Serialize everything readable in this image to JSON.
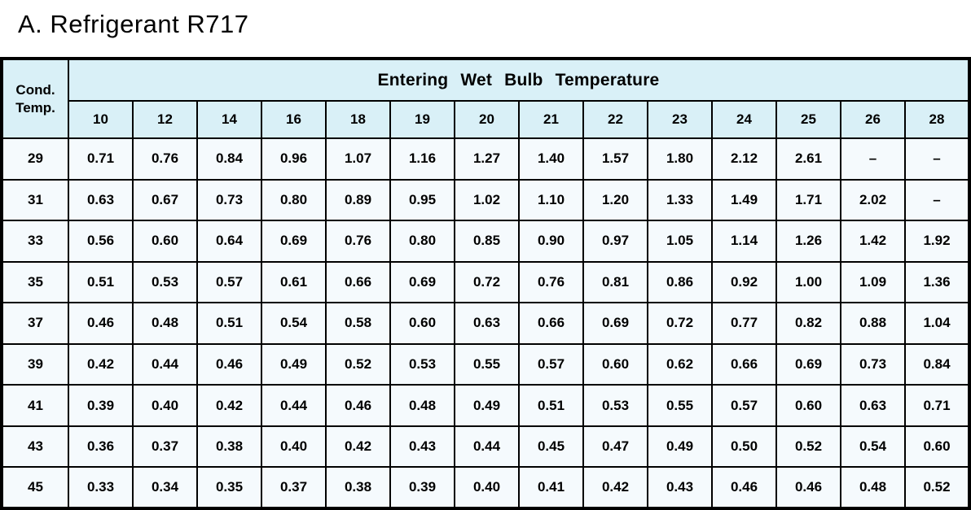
{
  "page": {
    "title": "A. Refrigerant R717"
  },
  "table": {
    "corner_header": "Cond. Temp.",
    "group_header": "Entering Wet Bulb Temperature",
    "columns": [
      "10",
      "12",
      "14",
      "16",
      "18",
      "19",
      "20",
      "21",
      "22",
      "23",
      "24",
      "25",
      "26",
      "28"
    ],
    "rows": [
      {
        "cond_temp": "29",
        "values": [
          "0.71",
          "0.76",
          "0.84",
          "0.96",
          "1.07",
          "1.16",
          "1.27",
          "1.40",
          "1.57",
          "1.80",
          "2.12",
          "2.61",
          "–",
          "–"
        ]
      },
      {
        "cond_temp": "31",
        "values": [
          "0.63",
          "0.67",
          "0.73",
          "0.80",
          "0.89",
          "0.95",
          "1.02",
          "1.10",
          "1.20",
          "1.33",
          "1.49",
          "1.71",
          "2.02",
          "–"
        ]
      },
      {
        "cond_temp": "33",
        "values": [
          "0.56",
          "0.60",
          "0.64",
          "0.69",
          "0.76",
          "0.80",
          "0.85",
          "0.90",
          "0.97",
          "1.05",
          "1.14",
          "1.26",
          "1.42",
          "1.92"
        ]
      },
      {
        "cond_temp": "35",
        "values": [
          "0.51",
          "0.53",
          "0.57",
          "0.61",
          "0.66",
          "0.69",
          "0.72",
          "0.76",
          "0.81",
          "0.86",
          "0.92",
          "1.00",
          "1.09",
          "1.36"
        ]
      },
      {
        "cond_temp": "37",
        "values": [
          "0.46",
          "0.48",
          "0.51",
          "0.54",
          "0.58",
          "0.60",
          "0.63",
          "0.66",
          "0.69",
          "0.72",
          "0.77",
          "0.82",
          "0.88",
          "1.04"
        ]
      },
      {
        "cond_temp": "39",
        "values": [
          "0.42",
          "0.44",
          "0.46",
          "0.49",
          "0.52",
          "0.53",
          "0.55",
          "0.57",
          "0.60",
          "0.62",
          "0.66",
          "0.69",
          "0.73",
          "0.84"
        ]
      },
      {
        "cond_temp": "41",
        "values": [
          "0.39",
          "0.40",
          "0.42",
          "0.44",
          "0.46",
          "0.48",
          "0.49",
          "0.51",
          "0.53",
          "0.55",
          "0.57",
          "0.60",
          "0.63",
          "0.71"
        ]
      },
      {
        "cond_temp": "43",
        "values": [
          "0.36",
          "0.37",
          "0.38",
          "0.40",
          "0.42",
          "0.43",
          "0.44",
          "0.45",
          "0.47",
          "0.49",
          "0.50",
          "0.52",
          "0.54",
          "0.60"
        ]
      },
      {
        "cond_temp": "45",
        "values": [
          "0.33",
          "0.34",
          "0.35",
          "0.37",
          "0.38",
          "0.39",
          "0.40",
          "0.41",
          "0.42",
          "0.43",
          "0.46",
          "0.46",
          "0.48",
          "0.52"
        ]
      }
    ],
    "colors": {
      "header_bg": "#d9f0f7",
      "cell_bg": "#f5fafd",
      "border": "#000000"
    }
  }
}
